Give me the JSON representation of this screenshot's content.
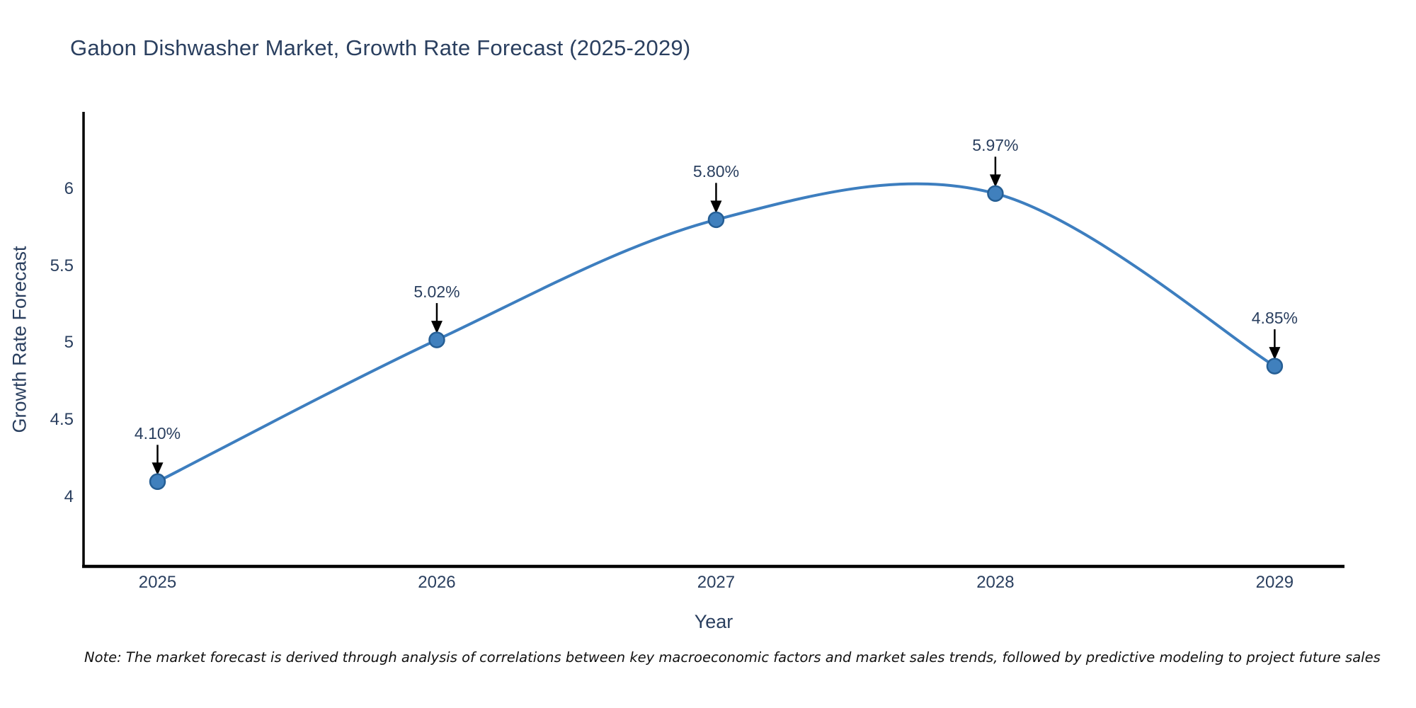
{
  "chart_data": {
    "type": "line",
    "title": "Gabon Dishwasher Market, Growth Rate Forecast (2025-2029)",
    "xlabel": "Year",
    "ylabel": "Growth Rate Forecast",
    "x": [
      2025,
      2026,
      2027,
      2028,
      2029
    ],
    "series": [
      {
        "name": "Growth Rate Forecast",
        "values": [
          4.1,
          5.02,
          5.8,
          5.97,
          4.85
        ],
        "point_labels": [
          "4.10%",
          "5.02%",
          "5.80%",
          "5.97%",
          "4.85%"
        ]
      }
    ],
    "line_shape": "spline",
    "markers": true,
    "annotation_arrows": true,
    "xticks": [
      "2025",
      "2026",
      "2027",
      "2028",
      "2029"
    ],
    "yticks": [
      "4",
      "4.5",
      "5",
      "5.5",
      "6"
    ],
    "ytick_values": [
      4,
      4.5,
      5,
      5.5,
      6
    ],
    "xlim": [
      2024.73,
      2029.25
    ],
    "ylim": [
      3.55,
      6.5
    ],
    "grid": false,
    "legend": "none",
    "colors": {
      "line": "#3d7ebf",
      "marker_fill": "#4080bd",
      "marker_edge": "#255e94",
      "arrow": "#000000",
      "axis_line": "#000000",
      "text": "#2a3f5f",
      "note_text": "#111111",
      "background": "#ffffff"
    }
  },
  "note": {
    "text": "Note: The market forecast is derived through analysis of correlations between key macroeconomic factors and market sales trends, followed by predictive modeling to project future sales"
  }
}
